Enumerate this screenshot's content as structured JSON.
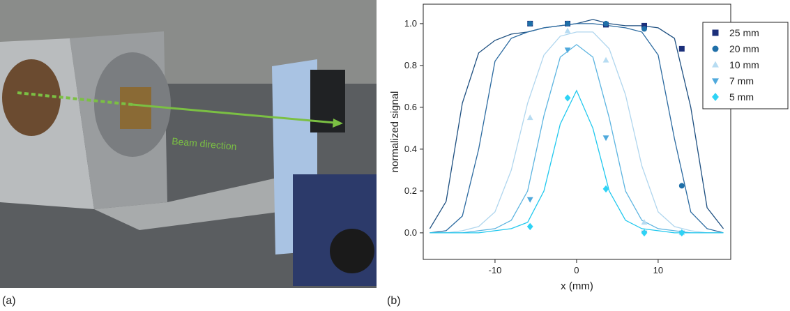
{
  "panels": {
    "a": "(a)",
    "b": "(b)"
  },
  "photo": {
    "annotation": "Beam direction"
  },
  "chart_data": {
    "type": "scatter",
    "x_label": "x (mm)",
    "y_label": "normalized signal",
    "xlim": [
      -18.8,
      18.9
    ],
    "ylim": [
      -0.127,
      1.093
    ],
    "xticks": [
      -10,
      0,
      10
    ],
    "yticks": [
      {
        "value": 0,
        "label": "0.0"
      },
      {
        "value": 0.2,
        "label": "0.2"
      },
      {
        "value": 0.4,
        "label": "0.4"
      },
      {
        "value": 0.6,
        "label": "0.6"
      },
      {
        "value": 0.8,
        "label": "0.8"
      },
      {
        "value": 1,
        "label": "1.0"
      }
    ],
    "x": [
      -5.7,
      -1.1,
      3.6,
      8.3,
      12.9
    ],
    "series": [
      {
        "name": "25 mm",
        "color": "#1b2f7a",
        "marker": "square",
        "values": [
          1.0,
          1.0,
          0.995,
          0.99,
          0.88
        ]
      },
      {
        "name": "20 mm",
        "color": "#1f6fa8",
        "marker": "circle",
        "values": [
          1.0,
          1.0,
          1.0,
          0.975,
          0.225
        ]
      },
      {
        "name": "10 mm",
        "color": "#b7dcf2",
        "marker": "triangle-up",
        "values": [
          0.55,
          0.965,
          0.825,
          0.05,
          0.0
        ]
      },
      {
        "name": "7 mm",
        "color": "#4fa9dc",
        "marker": "triangle-down",
        "values": [
          0.16,
          0.875,
          0.455,
          0.0,
          0.0
        ]
      },
      {
        "name": "5 mm",
        "color": "#2ed3f5",
        "marker": "diamond",
        "values": [
          0.03,
          0.645,
          0.21,
          0.0,
          0.0
        ]
      }
    ],
    "profiles": {
      "x": [
        -18,
        -16,
        -14,
        -12,
        -10,
        -8,
        -6,
        -4,
        -2,
        0,
        2,
        4,
        6,
        8,
        10,
        12,
        14,
        16,
        18
      ],
      "series": [
        {
          "color": "#1d4f80",
          "values": [
            0.02,
            0.15,
            0.62,
            0.86,
            0.92,
            0.95,
            0.96,
            0.98,
            0.99,
            1.0,
            1.02,
            1.0,
            0.99,
            0.99,
            0.98,
            0.93,
            0.6,
            0.12,
            0.02
          ]
        },
        {
          "color": "#2b6aa0",
          "values": [
            0.0,
            0.01,
            0.08,
            0.4,
            0.82,
            0.93,
            0.96,
            0.98,
            0.99,
            1.0,
            1.0,
            0.99,
            0.98,
            0.96,
            0.85,
            0.45,
            0.1,
            0.02,
            0.0
          ]
        },
        {
          "color": "#b0d6ee",
          "values": [
            0.0,
            0.0,
            0.01,
            0.03,
            0.1,
            0.3,
            0.62,
            0.85,
            0.94,
            0.96,
            0.96,
            0.88,
            0.66,
            0.32,
            0.1,
            0.03,
            0.01,
            0.0,
            0.0
          ]
        },
        {
          "color": "#5cb4e0",
          "values": [
            0.0,
            0.0,
            0.0,
            0.01,
            0.02,
            0.06,
            0.2,
            0.56,
            0.84,
            0.9,
            0.84,
            0.55,
            0.2,
            0.06,
            0.02,
            0.01,
            0.0,
            0.0,
            0.0
          ]
        },
        {
          "color": "#20c8ee",
          "values": [
            0.0,
            0.0,
            0.0,
            0.0,
            0.01,
            0.02,
            0.05,
            0.2,
            0.52,
            0.68,
            0.5,
            0.2,
            0.06,
            0.02,
            0.01,
            0.0,
            0.0,
            0.0,
            0.0
          ]
        }
      ]
    }
  }
}
